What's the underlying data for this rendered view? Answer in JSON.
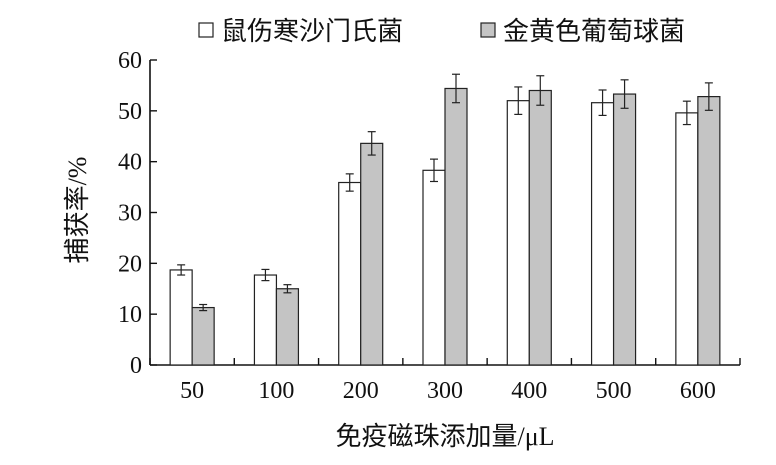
{
  "chart_data": {
    "type": "bar",
    "categories": [
      "50",
      "100",
      "200",
      "300",
      "400",
      "500",
      "600"
    ],
    "series": [
      {
        "name": "鼠伤寒沙门氏菌",
        "color": "#ffffff",
        "values": [
          18.7,
          17.7,
          35.9,
          38.3,
          52.0,
          51.6,
          49.6
        ],
        "errors": [
          1.0,
          1.1,
          1.7,
          2.2,
          2.7,
          2.5,
          2.3
        ]
      },
      {
        "name": "金黄色葡萄球菌",
        "color": "#c4c4c4",
        "values": [
          11.3,
          15.0,
          43.6,
          54.4,
          54.0,
          53.3,
          52.8
        ],
        "errors": [
          0.6,
          0.8,
          2.3,
          2.8,
          2.9,
          2.8,
          2.7
        ]
      }
    ],
    "title": "",
    "xlabel": "免疫磁珠添加量/μL",
    "ylabel": "捕获率/%",
    "ylim": [
      0,
      60
    ],
    "yticks": [
      0,
      10,
      20,
      30,
      40,
      50,
      60
    ],
    "grid": false,
    "legend_position": "top"
  }
}
